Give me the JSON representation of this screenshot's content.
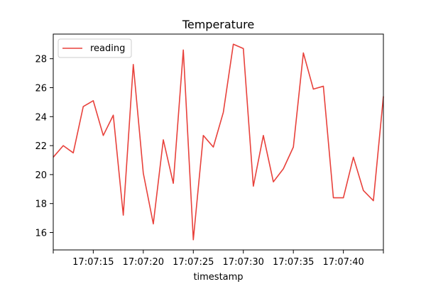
{
  "chart_data": {
    "type": "line",
    "title": "Temperature",
    "xlabel": "timestamp",
    "ylabel": "",
    "x": [
      "17:07:11",
      "17:07:12",
      "17:07:13",
      "17:07:14",
      "17:07:15",
      "17:07:16",
      "17:07:17",
      "17:07:18",
      "17:07:19",
      "17:07:20",
      "17:07:21",
      "17:07:22",
      "17:07:23",
      "17:07:24",
      "17:07:25",
      "17:07:26",
      "17:07:27",
      "17:07:28",
      "17:07:29",
      "17:07:30",
      "17:07:31",
      "17:07:32",
      "17:07:33",
      "17:07:34",
      "17:07:35",
      "17:07:36",
      "17:07:37",
      "17:07:38",
      "17:07:39",
      "17:07:40",
      "17:07:41",
      "17:07:42",
      "17:07:43",
      "17:07:44"
    ],
    "series": [
      {
        "name": "reading",
        "color": "#e8413b",
        "values": [
          21.2,
          22.0,
          21.5,
          24.7,
          25.1,
          22.7,
          24.1,
          17.2,
          27.6,
          20.1,
          16.6,
          22.4,
          19.4,
          28.6,
          15.5,
          22.7,
          21.9,
          24.3,
          29.0,
          28.7,
          19.2,
          22.7,
          19.5,
          20.4,
          21.9,
          28.4,
          25.9,
          26.1,
          18.4,
          18.4,
          21.2,
          18.9,
          18.2,
          25.4
        ]
      }
    ],
    "xlim": [
      "17:07:11",
      "17:07:44"
    ],
    "ylim": [
      14.8,
      29.7
    ],
    "xticks": [
      "17:07:15",
      "17:07:20",
      "17:07:25",
      "17:07:30",
      "17:07:35",
      "17:07:40"
    ],
    "yticks": [
      16,
      18,
      20,
      22,
      24,
      26,
      28
    ],
    "grid": false,
    "legend": {
      "placement": "top-left",
      "entries": [
        "reading"
      ]
    }
  }
}
